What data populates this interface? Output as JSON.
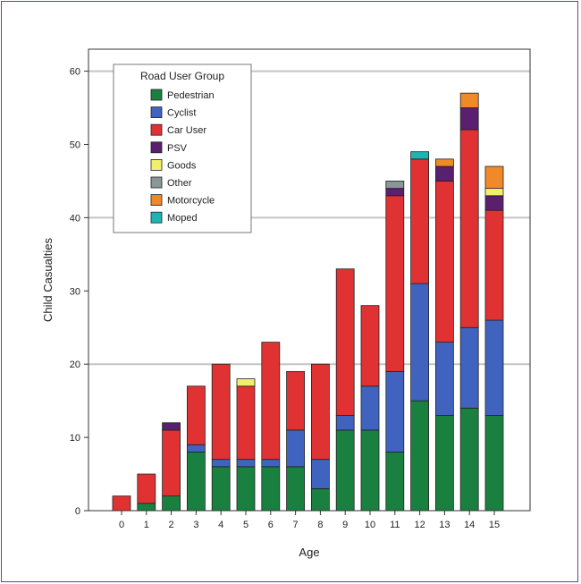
{
  "chart_data": {
    "type": "bar",
    "stacked": true,
    "xlabel": "Age",
    "ylabel": "Child Casualties",
    "ylim": [
      0,
      63
    ],
    "yticks": [
      0,
      10,
      20,
      30,
      40,
      50,
      60
    ],
    "grid": "horizontal at 20, 40, 60",
    "legend": {
      "title": "Road User Group",
      "position": "top-left"
    },
    "categories": [
      "0",
      "1",
      "2",
      "3",
      "4",
      "5",
      "6",
      "7",
      "8",
      "9",
      "10",
      "11",
      "12",
      "13",
      "14",
      "15"
    ],
    "series": [
      {
        "name": "Pedestrian",
        "color": "#1a8040",
        "values": [
          0,
          1,
          2,
          8,
          6,
          6,
          6,
          6,
          3,
          11,
          11,
          8,
          15,
          13,
          14,
          13
        ]
      },
      {
        "name": "Cyclist",
        "color": "#3f63bf",
        "values": [
          0,
          0,
          0,
          1,
          1,
          1,
          1,
          5,
          4,
          2,
          6,
          11,
          16,
          10,
          11,
          13
        ]
      },
      {
        "name": "Car User",
        "color": "#e03232",
        "values": [
          2,
          4,
          9,
          8,
          13,
          10,
          16,
          8,
          13,
          20,
          11,
          24,
          17,
          22,
          27,
          15
        ]
      },
      {
        "name": "PSV",
        "color": "#5a1f6e",
        "values": [
          0,
          0,
          1,
          0,
          0,
          0,
          0,
          0,
          0,
          0,
          0,
          1,
          0,
          2,
          3,
          2
        ]
      },
      {
        "name": "Goods",
        "color": "#f0f06a",
        "values": [
          0,
          0,
          0,
          0,
          0,
          1,
          0,
          0,
          0,
          0,
          0,
          0,
          0,
          0,
          0,
          1
        ]
      },
      {
        "name": "Other",
        "color": "#8a9698",
        "values": [
          0,
          0,
          0,
          0,
          0,
          0,
          0,
          0,
          0,
          0,
          0,
          1,
          0,
          0,
          0,
          0
        ]
      },
      {
        "name": "Motorcycle",
        "color": "#f08a28",
        "values": [
          0,
          0,
          0,
          0,
          0,
          0,
          0,
          0,
          0,
          0,
          0,
          0,
          0,
          1,
          2,
          3
        ]
      },
      {
        "name": "Moped",
        "color": "#1fb4b4",
        "values": [
          0,
          0,
          0,
          0,
          0,
          0,
          0,
          0,
          0,
          0,
          0,
          0,
          1,
          0,
          0,
          0
        ]
      }
    ]
  }
}
